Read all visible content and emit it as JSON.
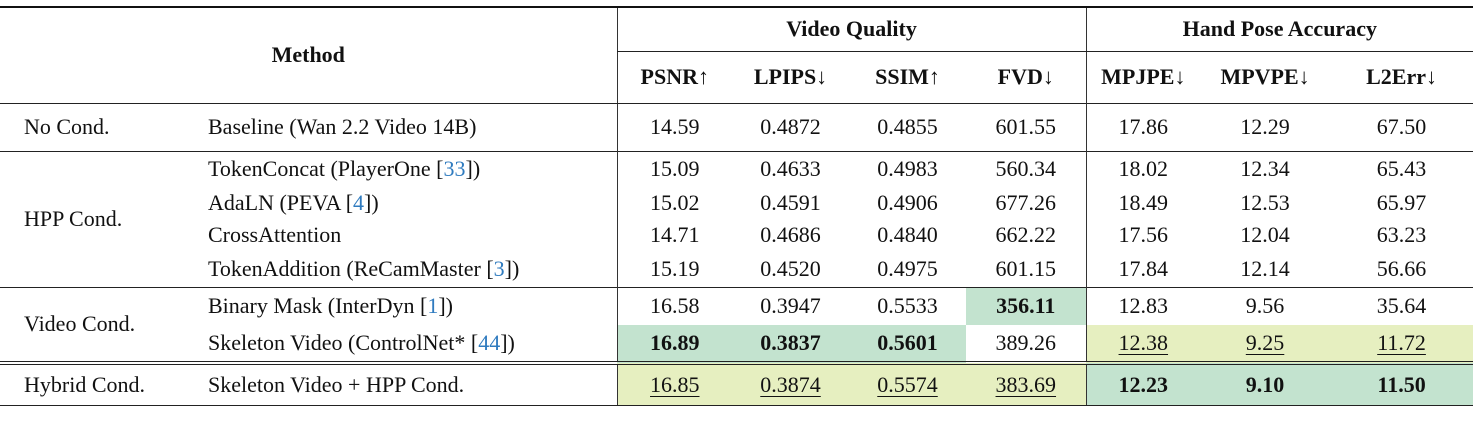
{
  "header": {
    "method": "Method",
    "group_video_quality": "Video Quality",
    "group_hand_pose": "Hand Pose Accuracy",
    "metrics": [
      "PSNR↑",
      "LPIPS↓",
      "SSIM↑",
      "FVD↓",
      "MPJPE↓",
      "MPVPE↓",
      "L2Err↓"
    ]
  },
  "highlight_colors": {
    "best": "#c3e3cf",
    "second": "#e6efc0"
  },
  "citation_color": "#2f7bbf",
  "groups": [
    {
      "label": "No Cond.",
      "rows": [
        {
          "method": "Baseline (Wan 2.2 Video 14B)",
          "cite": null,
          "after": "",
          "cells": [
            {
              "v": "14.59"
            },
            {
              "v": "0.4872"
            },
            {
              "v": "0.4855"
            },
            {
              "v": "601.55"
            },
            {
              "v": "17.86"
            },
            {
              "v": "12.29"
            },
            {
              "v": "67.50"
            }
          ]
        }
      ]
    },
    {
      "label": "HPP Cond.",
      "rows": [
        {
          "method": "TokenConcat (PlayerOne ",
          "cite": "33",
          "after": ")",
          "cells": [
            {
              "v": "15.09"
            },
            {
              "v": "0.4633"
            },
            {
              "v": "0.4983"
            },
            {
              "v": "560.34"
            },
            {
              "v": "18.02"
            },
            {
              "v": "12.34"
            },
            {
              "v": "65.43"
            }
          ]
        },
        {
          "method": "AdaLN (PEVA ",
          "cite": "4",
          "after": ")",
          "cells": [
            {
              "v": "15.02"
            },
            {
              "v": "0.4591"
            },
            {
              "v": "0.4906"
            },
            {
              "v": "677.26"
            },
            {
              "v": "18.49"
            },
            {
              "v": "12.53"
            },
            {
              "v": "65.97"
            }
          ]
        },
        {
          "method": "CrossAttention",
          "cite": null,
          "after": "",
          "cells": [
            {
              "v": "14.71"
            },
            {
              "v": "0.4686"
            },
            {
              "v": "0.4840"
            },
            {
              "v": "662.22"
            },
            {
              "v": "17.56"
            },
            {
              "v": "12.04"
            },
            {
              "v": "63.23"
            }
          ]
        },
        {
          "method": "TokenAddition (ReCamMaster ",
          "cite": "3",
          "after": ")",
          "cells": [
            {
              "v": "15.19"
            },
            {
              "v": "0.4520"
            },
            {
              "v": "0.4975"
            },
            {
              "v": "601.15"
            },
            {
              "v": "17.84"
            },
            {
              "v": "12.14"
            },
            {
              "v": "56.66"
            }
          ]
        }
      ]
    },
    {
      "label": "Video Cond.",
      "rows": [
        {
          "method": "Binary Mask (InterDyn ",
          "cite": "1",
          "after": ")",
          "cells": [
            {
              "v": "16.58"
            },
            {
              "v": "0.3947"
            },
            {
              "v": "0.5533"
            },
            {
              "v": "356.11",
              "rank": "best"
            },
            {
              "v": "12.83"
            },
            {
              "v": "9.56"
            },
            {
              "v": "35.64"
            }
          ]
        },
        {
          "method": "Skeleton Video (ControlNet* ",
          "cite": "44",
          "after": ")",
          "cells": [
            {
              "v": "16.89",
              "rank": "best"
            },
            {
              "v": "0.3837",
              "rank": "best"
            },
            {
              "v": "0.5601",
              "rank": "best"
            },
            {
              "v": "389.26"
            },
            {
              "v": "12.38",
              "rank": "second"
            },
            {
              "v": "9.25",
              "rank": "second"
            },
            {
              "v": "11.72",
              "rank": "second"
            }
          ]
        }
      ]
    },
    {
      "label": "Hybrid Cond.",
      "rows": [
        {
          "method": "Skeleton Video + HPP Cond.",
          "cite": null,
          "after": "",
          "cells": [
            {
              "v": "16.85",
              "rank": "second"
            },
            {
              "v": "0.3874",
              "rank": "second"
            },
            {
              "v": "0.5574",
              "rank": "second"
            },
            {
              "v": "383.69",
              "rank": "second"
            },
            {
              "v": "12.23",
              "rank": "best"
            },
            {
              "v": "9.10",
              "rank": "best"
            },
            {
              "v": "11.50",
              "rank": "best"
            }
          ]
        }
      ]
    }
  ]
}
